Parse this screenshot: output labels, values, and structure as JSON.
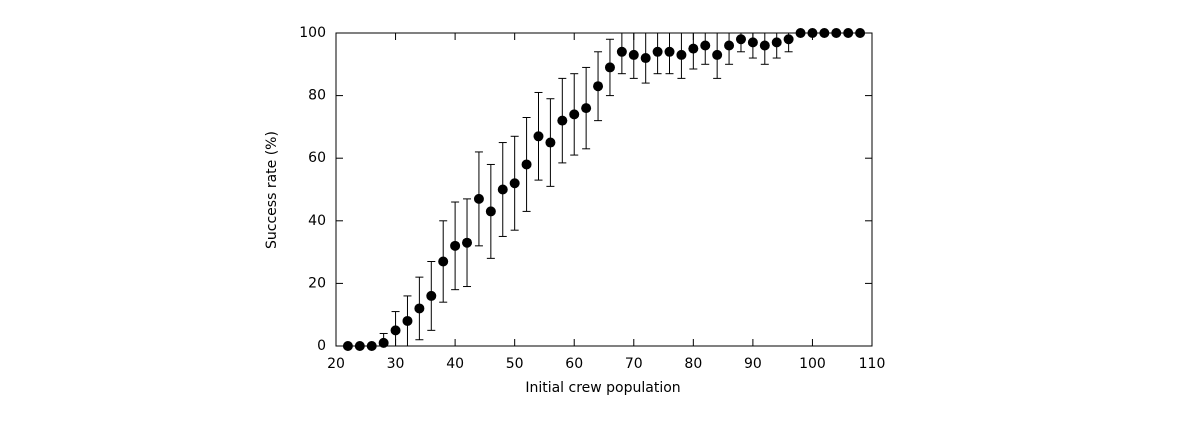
{
  "chart_data": {
    "type": "scatter",
    "xlabel": "Initial crew population",
    "ylabel": "Success rate (%)",
    "x": [
      22,
      24,
      26,
      28,
      30,
      32,
      34,
      36,
      38,
      40,
      42,
      44,
      46,
      48,
      50,
      52,
      54,
      56,
      58,
      60,
      62,
      64,
      66,
      68,
      70,
      72,
      74,
      76,
      78,
      80,
      82,
      84,
      86,
      88,
      90,
      92,
      94,
      96,
      98,
      100,
      102,
      104,
      106,
      108
    ],
    "values": [
      0,
      0,
      0,
      1,
      5,
      8,
      12,
      16,
      27,
      32,
      33,
      47,
      43,
      50,
      52,
      58,
      67,
      65,
      72,
      74,
      76,
      83,
      89,
      94,
      93,
      92,
      94,
      94,
      93,
      95,
      96,
      93,
      96,
      98,
      97,
      96,
      97,
      98,
      100,
      100,
      100,
      100,
      100,
      100
    ],
    "errors": [
      0,
      0,
      0,
      3,
      6,
      8,
      10,
      11,
      13,
      14,
      14,
      15,
      15,
      15,
      15,
      15,
      14,
      14,
      13.5,
      13,
      13,
      11,
      9,
      7,
      7.5,
      8,
      7,
      7,
      7.5,
      6.5,
      6,
      7.5,
      6,
      4,
      5,
      6,
      5,
      4,
      0,
      0,
      0,
      0,
      0,
      0
    ],
    "color": "#000000",
    "xlim": [
      20,
      110
    ],
    "xticks": [
      20,
      30,
      40,
      50,
      60,
      70,
      80,
      90,
      100,
      110
    ],
    "ylim": [
      0,
      100
    ],
    "yticks": [
      0,
      20,
      40,
      60,
      80,
      100
    ]
  }
}
